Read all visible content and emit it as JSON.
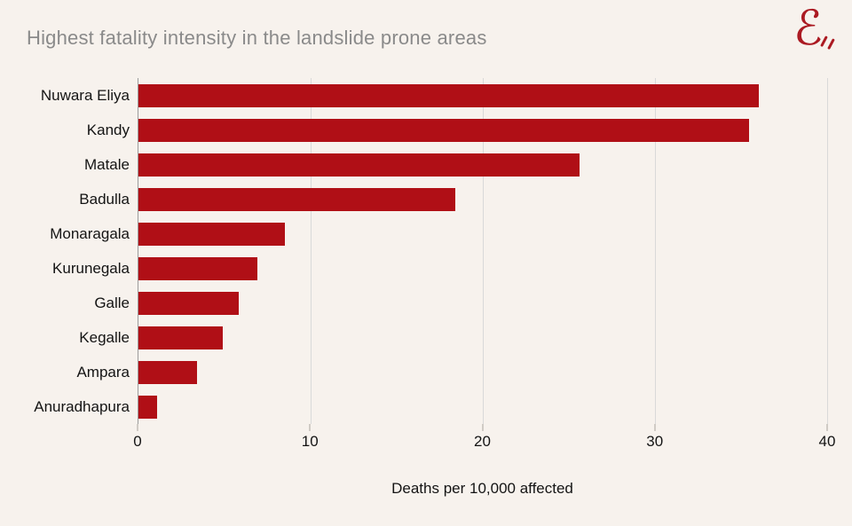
{
  "logo": {
    "glyph": "ℰ",
    "name": "script-e-brand-mark"
  },
  "colors": {
    "background": "#f7f2ed",
    "bar": "#b00f16",
    "title_text": "#8a8a8a",
    "label_text": "#141414",
    "gridline": "#d9d9d9",
    "axis_line": "#9c9c9c",
    "tick": "#aaa49d",
    "logo": "#ab1a22"
  },
  "chart_data": {
    "type": "bar",
    "orientation": "horizontal",
    "title": "Highest fatality intensity in the landslide prone areas",
    "xlabel": "Deaths per 10,000 affected",
    "ylabel": "",
    "categories": [
      "Nuwara Eliya",
      "Kandy",
      "Matale",
      "Badulla",
      "Monaragala",
      "Kurunegala",
      "Galle",
      "Kegalle",
      "Ampara",
      "Anuradhapura"
    ],
    "values": [
      36.0,
      35.4,
      25.6,
      18.4,
      8.5,
      6.9,
      5.8,
      4.9,
      3.4,
      1.1
    ],
    "xlim": [
      0,
      40
    ],
    "xticks": [
      0,
      10,
      20,
      30,
      40
    ],
    "grid": true,
    "legend": false
  }
}
